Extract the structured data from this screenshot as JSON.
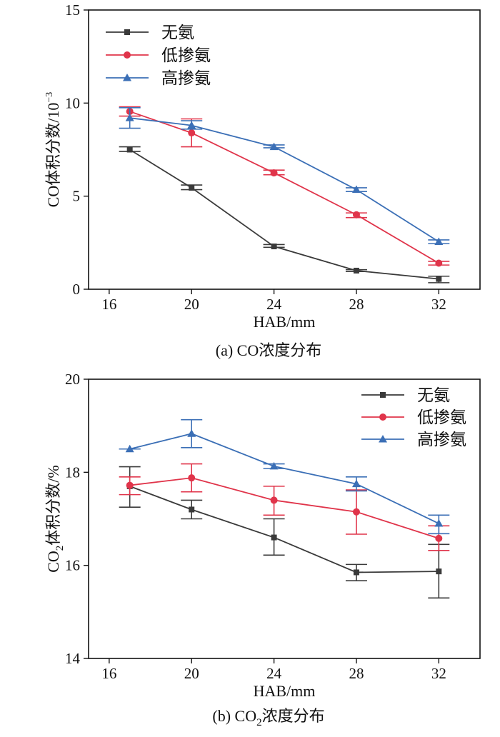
{
  "chart_data": [
    {
      "type": "line",
      "caption": "(a) CO浓度分布",
      "xlabel": "HAB/mm",
      "ylabel": "CO体积分数/10",
      "ylabel_sup": "−3",
      "xticks": [
        "16",
        "20",
        "24",
        "28",
        "32"
      ],
      "yticks": [
        "0",
        "5",
        "10",
        "15"
      ],
      "xlim": [
        15,
        34
      ],
      "ylim": [
        0,
        15
      ],
      "legend_position": "top-left",
      "series": [
        {
          "name": "无氨",
          "color": "#3a3a3a",
          "marker": "square",
          "x": [
            17,
            20,
            24,
            28,
            32
          ],
          "y": [
            7.5,
            5.45,
            2.3,
            1.0,
            0.55
          ],
          "err_low": [
            7.4,
            5.35,
            2.25,
            0.95,
            0.35
          ],
          "err_high": [
            7.65,
            5.6,
            2.4,
            1.05,
            0.7
          ]
        },
        {
          "name": "低掺氨",
          "color": "#e0344a",
          "marker": "circle",
          "x": [
            17,
            20,
            24,
            28,
            32
          ],
          "y": [
            9.55,
            8.4,
            6.25,
            4.0,
            1.4
          ],
          "err_low": [
            9.3,
            7.65,
            6.15,
            3.85,
            1.3
          ],
          "err_high": [
            9.8,
            9.15,
            6.4,
            4.1,
            1.5
          ]
        },
        {
          "name": "高掺氨",
          "color": "#3b6fb6",
          "marker": "triangle",
          "x": [
            17,
            20,
            24,
            28,
            32
          ],
          "y": [
            9.2,
            8.8,
            7.65,
            5.35,
            2.55
          ],
          "err_low": [
            8.65,
            8.6,
            7.6,
            5.25,
            2.45
          ],
          "err_high": [
            9.75,
            9.05,
            7.75,
            5.45,
            2.65
          ]
        }
      ]
    },
    {
      "type": "line",
      "caption": "(b) CO浓度分布",
      "caption_sub": "2",
      "xlabel": "HAB/mm",
      "ylabel": "CO体积分数/%",
      "ylabel_sub": "2",
      "xticks": [
        "16",
        "20",
        "24",
        "28",
        "32"
      ],
      "yticks": [
        "14",
        "16",
        "18",
        "20"
      ],
      "xlim": [
        15,
        34
      ],
      "ylim": [
        14,
        20
      ],
      "legend_position": "top-right",
      "series": [
        {
          "name": "无氨",
          "color": "#3a3a3a",
          "marker": "square",
          "x": [
            17,
            20,
            24,
            28,
            32
          ],
          "y": [
            17.7,
            17.2,
            16.6,
            15.85,
            15.87
          ],
          "err_low": [
            17.25,
            17.0,
            16.22,
            15.67,
            15.3
          ],
          "err_high": [
            18.12,
            17.4,
            17.0,
            16.02,
            16.45
          ]
        },
        {
          "name": "低掺氨",
          "color": "#e0344a",
          "marker": "circle",
          "x": [
            17,
            20,
            24,
            28,
            32
          ],
          "y": [
            17.72,
            17.88,
            17.4,
            17.15,
            16.58
          ],
          "err_low": [
            17.52,
            17.58,
            17.08,
            16.67,
            16.32
          ],
          "err_high": [
            17.9,
            18.18,
            17.7,
            17.62,
            16.85
          ]
        },
        {
          "name": "高掺氨",
          "color": "#3b6fb6",
          "marker": "triangle",
          "x": [
            17,
            20,
            24,
            28,
            32
          ],
          "y": [
            18.5,
            18.83,
            18.13,
            17.75,
            16.9
          ],
          "err_low": [
            18.5,
            18.53,
            18.08,
            17.6,
            16.68
          ],
          "err_high": [
            18.5,
            19.13,
            18.18,
            17.9,
            17.08
          ]
        }
      ]
    }
  ]
}
